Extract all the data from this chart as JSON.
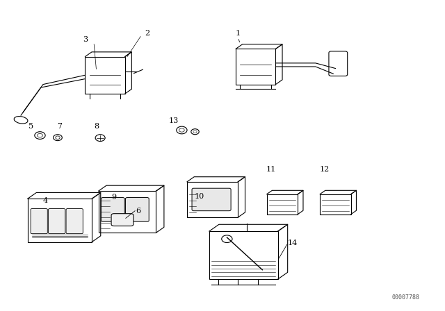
{
  "bg_color": "#ffffff",
  "line_color": "#000000",
  "fig_width": 6.4,
  "fig_height": 4.48,
  "dpi": 100,
  "part_number": "00007788"
}
